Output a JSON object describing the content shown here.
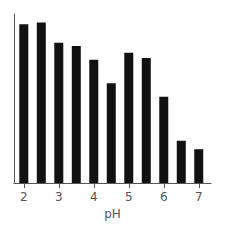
{
  "chart_data": {
    "type": "bar",
    "x_label": "pH",
    "x": [
      2.0,
      2.5,
      3.0,
      3.5,
      4.0,
      4.5,
      5.0,
      5.5,
      6.0,
      6.5,
      7.0
    ],
    "values": [
      0.94,
      0.95,
      0.83,
      0.81,
      0.73,
      0.59,
      0.77,
      0.74,
      0.51,
      0.25,
      0.2
    ],
    "color": "#111111",
    "xlim": [
      1.72,
      7.35
    ],
    "xticks": [
      2,
      3,
      4,
      5,
      6,
      7
    ],
    "ylim": [
      0,
      1.0
    ],
    "tick_labels": "x",
    "grid": false
  }
}
